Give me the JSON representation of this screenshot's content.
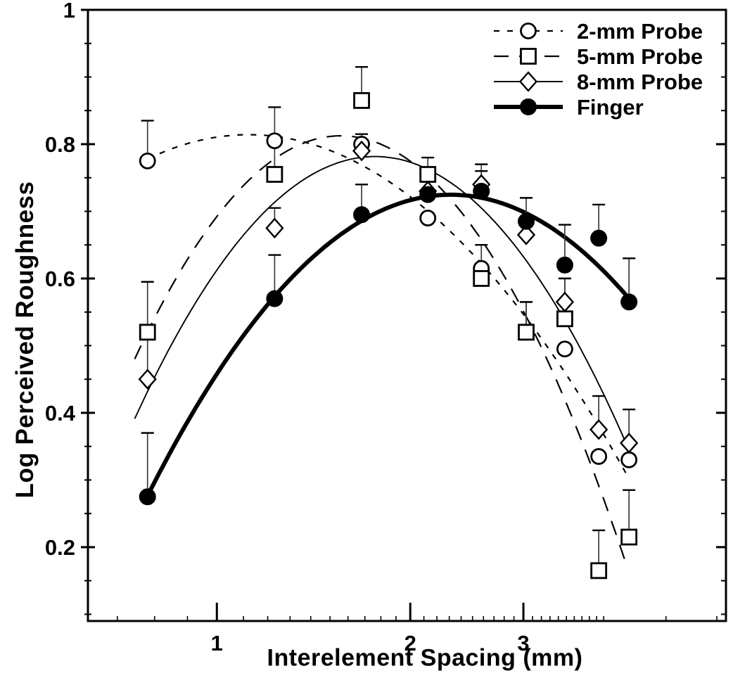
{
  "colors": {
    "ink": "#000000",
    "error_bar": "#3c3c3c",
    "background": "#ffffff"
  },
  "chart_data": {
    "type": "scatter",
    "title": "",
    "xlabel": "Interelement Spacing (mm)",
    "ylabel": "Log Perceived Roughness",
    "x_scale": "log",
    "y_scale": "linear",
    "xlim": [
      0.63,
      6.2
    ],
    "ylim": [
      0.09,
      1.0
    ],
    "x_major_ticks": [
      1,
      2,
      3
    ],
    "x_minor_ticks": [
      0.7,
      0.8,
      0.9,
      1.1,
      1.2,
      1.3,
      1.4,
      1.5,
      1.6,
      1.7,
      1.8,
      1.9,
      2.1,
      2.2,
      2.3,
      2.4,
      2.5,
      2.6,
      2.7,
      2.8,
      2.9,
      3.1,
      3.2,
      3.3,
      3.4,
      3.5,
      3.6,
      3.7,
      3.8,
      3.9,
      4,
      5,
      6
    ],
    "y_major_ticks": [
      0.2,
      0.4,
      0.6,
      0.8,
      1
    ],
    "y_minor_step": 0.05,
    "grid": false,
    "legend_position": "top-right",
    "fit_model": "quadratic fit in log10(spacing), least squares",
    "x": [
      0.78,
      1.23,
      1.68,
      2.13,
      2.58,
      3.03,
      3.48,
      3.93,
      4.38
    ],
    "series": [
      {
        "name": "2-mm Probe",
        "marker": "open-circle",
        "line_style": "short-dash",
        "line_width": 2.2,
        "values": [
          0.775,
          0.805,
          0.8,
          0.69,
          0.615,
          0.52,
          0.495,
          0.335,
          0.33
        ],
        "err_up": [
          0.835,
          0.855,
          null,
          null,
          0.65,
          0.565,
          null,
          null,
          null
        ],
        "curve_range": [
          0.78,
          4.33
        ]
      },
      {
        "name": "5-mm Probe",
        "marker": "open-square",
        "line_style": "long-dash",
        "line_width": 2.2,
        "values": [
          0.52,
          0.755,
          0.865,
          0.755,
          0.6,
          0.52,
          0.54,
          0.165,
          0.215
        ],
        "err_up": [
          0.595,
          0.8,
          0.915,
          0.78,
          null,
          0.565,
          0.6,
          0.225,
          0.285
        ],
        "curve_range": [
          0.745,
          4.33
        ]
      },
      {
        "name": "8-mm Probe",
        "marker": "open-diamond",
        "line_style": "solid",
        "line_width": 1.9,
        "values": [
          0.45,
          0.675,
          0.79,
          0.73,
          0.74,
          0.665,
          0.565,
          0.375,
          0.355
        ],
        "err_up": [
          0.52,
          0.705,
          0.815,
          null,
          0.77,
          null,
          0.6,
          0.425,
          0.405
        ],
        "curve_range": [
          0.745,
          4.43
        ]
      },
      {
        "name": "Finger",
        "marker": "filled-circle",
        "line_style": "solid",
        "line_width": 6,
        "values": [
          0.275,
          0.57,
          0.695,
          0.725,
          0.73,
          0.685,
          0.62,
          0.66,
          0.565
        ],
        "err_up": [
          0.37,
          0.635,
          0.74,
          null,
          0.76,
          0.72,
          0.68,
          0.71,
          0.63
        ],
        "curve_range": [
          0.78,
          4.42
        ]
      }
    ]
  }
}
